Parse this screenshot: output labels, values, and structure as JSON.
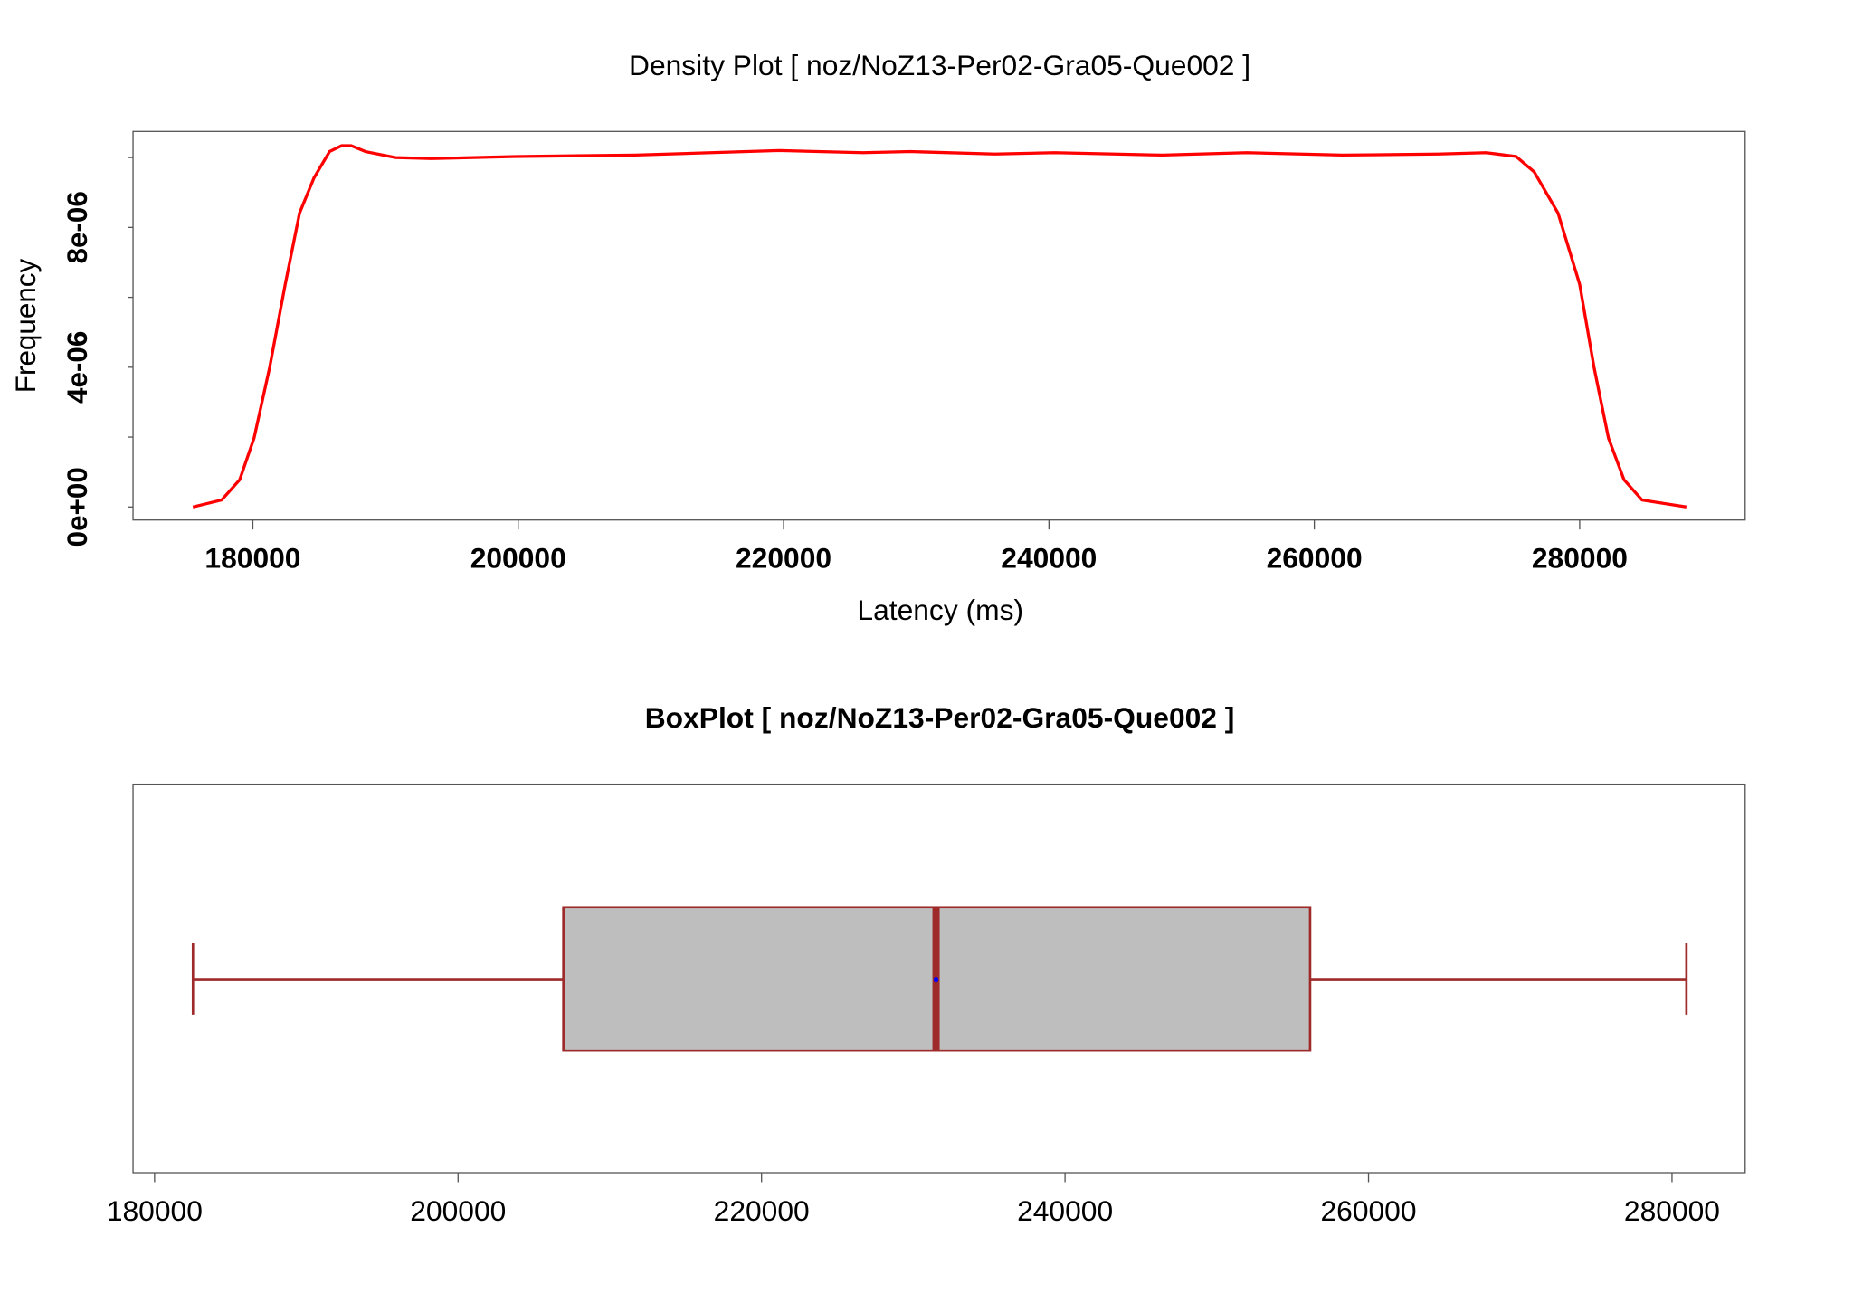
{
  "chart_data": [
    {
      "type": "density",
      "title": "Density Plot [ noz/NoZ13-Per02-Gra05-Que002 ]",
      "title_weight": "normal",
      "xlabel": "Latency (ms)",
      "ylabel": "Frequency",
      "color": "#ff0000",
      "tick_label_weight": "bold",
      "x": [
        175480,
        177650,
        179010,
        180090,
        181270,
        182440,
        183520,
        184610,
        185780,
        186690,
        187410,
        188490,
        190750,
        193460,
        199780,
        208820,
        219660,
        225980,
        229590,
        235920,
        240430,
        248560,
        254890,
        262110,
        269340,
        272950,
        275210,
        276570,
        278370,
        280000,
        281080,
        282170,
        283340,
        284700,
        288040
      ],
      "values": [
        0,
        2e-07,
        7.8e-07,
        1.97e-06,
        4e-06,
        6.37e-06,
        8.41e-06,
        9.42e-06,
        1.017e-05,
        1.034e-05,
        1.034e-05,
        1.017e-05,
        1e-05,
        9.97e-06,
        1.003e-05,
        1.007e-05,
        1.02e-05,
        1.014e-05,
        1.017e-05,
        1.01e-05,
        1.014e-05,
        1.007e-05,
        1.014e-05,
        1.007e-05,
        1.01e-05,
        1.014e-05,
        1.003e-05,
        9.59e-06,
        8.41e-06,
        6.37e-06,
        4e-06,
        1.97e-06,
        7.8e-07,
        2e-07,
        0
      ],
      "xlim": [
        170970,
        292470
      ],
      "xticks": [
        180000,
        200000,
        220000,
        240000,
        260000,
        280000
      ],
      "ylim": [
        -3.73e-07,
        1.0746e-05
      ],
      "yticks": [
        {
          "value": 0,
          "label": "0e+00"
        },
        {
          "value": 4e-06,
          "label": "4e-06"
        },
        {
          "value": 8e-06,
          "label": "8e-06"
        }
      ],
      "yminorticks": [
        2e-06,
        6e-06,
        1e-05
      ]
    },
    {
      "type": "box",
      "title": "BoxPlot [ noz/NoZ13-Per02-Gra05-Que002 ]",
      "title_weight": "bold",
      "whisker_low": 182530,
      "q1": 206940,
      "median": 231500,
      "q3": 256150,
      "whisker_high": 280950,
      "mean": 231500,
      "color": "#9e2a2a",
      "fill": "#bebebe",
      "mean_color": "#0000ff",
      "tick_label_weight": "normal",
      "xlim": [
        178580,
        284820
      ],
      "xticks": [
        180000,
        200000,
        220000,
        240000,
        260000,
        280000
      ]
    }
  ]
}
